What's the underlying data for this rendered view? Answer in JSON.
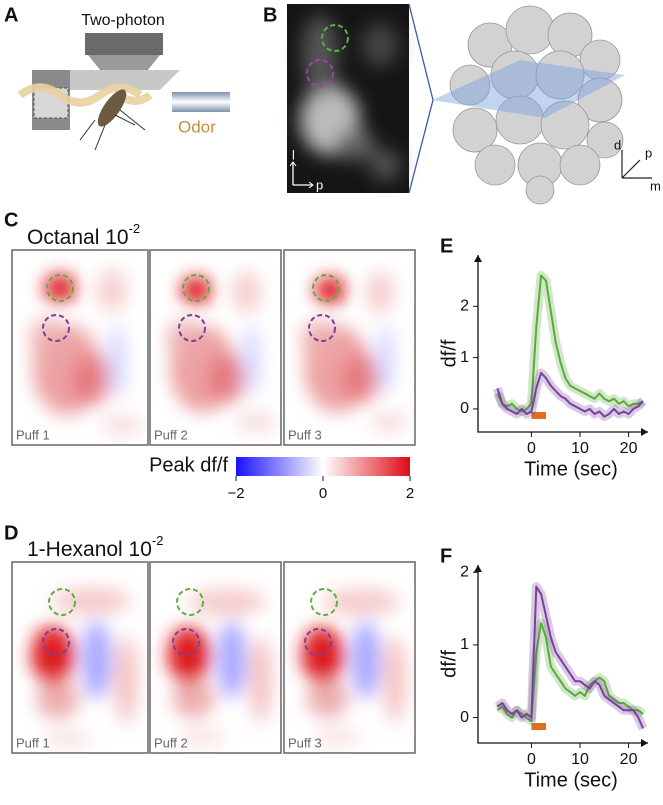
{
  "panels": {
    "A": {
      "label": "A",
      "objective": "Two-photon",
      "odor": "Odor"
    },
    "B": {
      "label": "B",
      "axes_2d": [
        "l",
        "p"
      ],
      "axes_3d": [
        "d",
        "p",
        "m"
      ]
    },
    "C": {
      "label": "C",
      "title": "Octanal 10",
      "exponent": "-2",
      "puffs": [
        "Puff 1",
        "Puff 2",
        "Puff 3"
      ]
    },
    "colorbar": {
      "title": "Peak df/f",
      "range": [
        -2,
        2
      ],
      "ticks": [
        {
          "value": -2,
          "label": "−2"
        },
        0,
        2
      ]
    },
    "D": {
      "label": "D",
      "title": "1-Hexanol 10",
      "exponent": "-2",
      "puffs": [
        "Puff 1",
        "Puff 2",
        "Puff 3"
      ]
    }
  },
  "chart_data": [
    {
      "type": "line",
      "panel_label": "E",
      "ylabel": "df/f",
      "xlabel": "Time (sec)",
      "x": [
        -7,
        -6,
        -5,
        -4,
        -3,
        -2,
        -1,
        0,
        1,
        2,
        3,
        4,
        5,
        6,
        7,
        8,
        9,
        10,
        11,
        12,
        13,
        14,
        15,
        16,
        17,
        18,
        19,
        20,
        21,
        22,
        23
      ],
      "series": [
        {
          "color": "#5aaa3c",
          "values": [
            0.3,
            0.1,
            0.05,
            0.1,
            0.0,
            -0.05,
            0.0,
            0.1,
            1.6,
            2.6,
            2.5,
            1.9,
            1.3,
            0.9,
            0.6,
            0.45,
            0.4,
            0.35,
            0.3,
            0.25,
            0.2,
            0.3,
            0.2,
            0.15,
            0.2,
            0.1,
            0.15,
            0.05,
            0.1,
            0.1,
            0.15
          ]
        },
        {
          "color": "#7b3f9e",
          "values": [
            0.4,
            0.1,
            0.0,
            -0.05,
            -0.1,
            0.0,
            -0.1,
            -0.05,
            0.4,
            0.7,
            0.6,
            0.45,
            0.35,
            0.25,
            0.2,
            0.1,
            0.05,
            0.0,
            -0.05,
            0.0,
            -0.1,
            -0.05,
            -0.15,
            -0.1,
            0.0,
            -0.1,
            -0.05,
            -0.1,
            0.0,
            0.05,
            0.15
          ]
        }
      ],
      "stimulus": [
        0,
        3
      ],
      "stimulus_color": "#e07020",
      "xlim": [
        -11,
        24
      ],
      "ylim": [
        -0.45,
        3
      ],
      "xticks": [
        0,
        10,
        20
      ],
      "yticks": [
        0,
        1,
        2
      ]
    },
    {
      "type": "line",
      "panel_label": "F",
      "ylabel": "df/f",
      "xlabel": "Time (sec)",
      "x": [
        -7,
        -6,
        -5,
        -4,
        -3,
        -2,
        -1,
        0,
        1,
        2,
        3,
        4,
        5,
        6,
        7,
        8,
        9,
        10,
        11,
        12,
        13,
        14,
        15,
        16,
        17,
        18,
        19,
        20,
        21,
        22,
        23
      ],
      "series": [
        {
          "color": "#5aaa3c",
          "values": [
            0.1,
            0.15,
            0.05,
            0.0,
            0.1,
            0.05,
            0.0,
            -0.05,
            0.9,
            1.3,
            1.1,
            0.7,
            0.6,
            0.5,
            0.4,
            0.35,
            0.3,
            0.35,
            0.3,
            0.45,
            0.5,
            0.55,
            0.5,
            0.3,
            0.25,
            0.2,
            0.2,
            0.15,
            0.1,
            0.1,
            0.05
          ]
        },
        {
          "color": "#7b3f9e",
          "values": [
            0.15,
            0.2,
            0.1,
            0.05,
            0.1,
            0.0,
            0.05,
            0.0,
            1.8,
            1.7,
            1.4,
            1.1,
            0.9,
            0.8,
            0.7,
            0.6,
            0.5,
            0.5,
            0.45,
            0.4,
            0.5,
            0.45,
            0.3,
            0.25,
            0.2,
            0.15,
            0.1,
            0.1,
            0.1,
            0.0,
            -0.15
          ]
        }
      ],
      "stimulus": [
        0,
        3
      ],
      "stimulus_color": "#e07020",
      "xlim": [
        -11,
        24
      ],
      "ylim": [
        -0.35,
        2.1
      ],
      "xticks": [
        0,
        10,
        20
      ],
      "yticks": [
        0,
        1,
        2
      ]
    }
  ]
}
